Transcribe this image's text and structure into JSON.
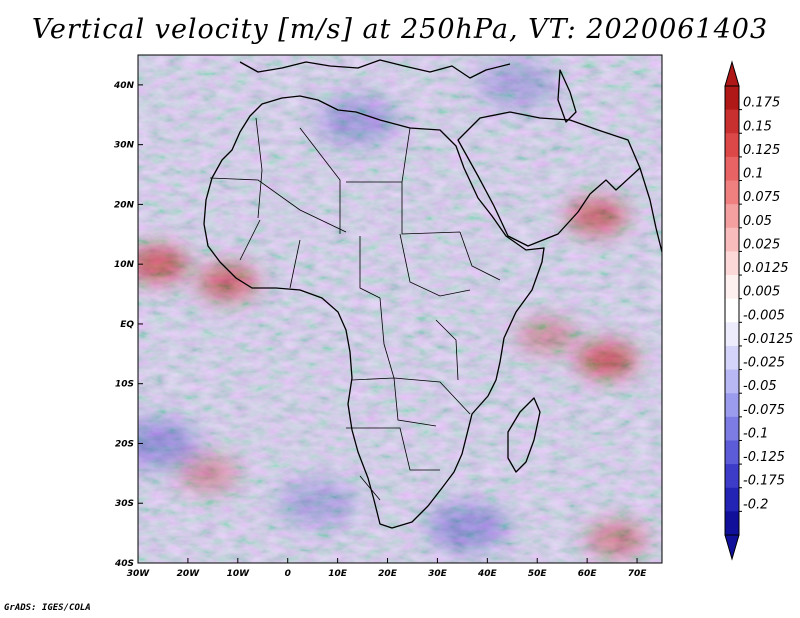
{
  "title": "Vertical velocity [m/s] at 250hPa, VT: 2020061403",
  "credit": "GrADS: IGES/COLA",
  "map": {
    "lat_range": [
      -40,
      45
    ],
    "lon_range": [
      -30,
      75
    ],
    "lat_labels": [
      "40N",
      "30N",
      "20N",
      "10N",
      "EQ",
      "10S",
      "20S",
      "30S",
      "40S"
    ],
    "lat_values": [
      40,
      30,
      20,
      10,
      0,
      -10,
      -20,
      -30,
      -40
    ],
    "lon_labels": [
      "30W",
      "20W",
      "10W",
      "0",
      "10E",
      "20E",
      "30E",
      "40E",
      "50E",
      "60E",
      "70E"
    ],
    "lon_values": [
      -30,
      -20,
      -10,
      0,
      10,
      20,
      30,
      40,
      50,
      60,
      70
    ]
  },
  "colorbar": {
    "labels": [
      "0.175",
      "0.15",
      "0.125",
      "0.1",
      "0.075",
      "0.05",
      "0.025",
      "0.0125",
      "0.005",
      "-0.005",
      "-0.0125",
      "-0.025",
      "-0.05",
      "-0.075",
      "-0.1",
      "-0.125",
      "-0.175",
      "-0.2"
    ],
    "colors": [
      "#b01818",
      "#c83030",
      "#dc4848",
      "#e86464",
      "#f08080",
      "#f4a0a0",
      "#f8bcbc",
      "#fcd8d8",
      "#fff0f0",
      "#ffffff",
      "#ececfc",
      "#d4d4fa",
      "#b8b8f4",
      "#9c9cee",
      "#7c7ce4",
      "#5c5cd8",
      "#3c3cc8",
      "#2424b4",
      "#10109a"
    ]
  },
  "field": {
    "background": "#d8d8f4",
    "red_patches": [
      {
        "lon": -26,
        "lat": 10,
        "strength": 0.9
      },
      {
        "lon": -12,
        "lat": 7,
        "strength": 0.8
      },
      {
        "lon": 64,
        "lat": -6,
        "strength": 0.9
      },
      {
        "lon": 62,
        "lat": 18,
        "strength": 0.8
      },
      {
        "lon": -16,
        "lat": -25,
        "strength": 0.5
      },
      {
        "lon": 52,
        "lat": -2,
        "strength": 0.5
      },
      {
        "lon": 66,
        "lat": -36,
        "strength": 0.6
      }
    ],
    "blue_patches": [
      {
        "lon": -26,
        "lat": -20,
        "strength": 0.6
      },
      {
        "lon": 36,
        "lat": -34,
        "strength": 0.6
      },
      {
        "lon": 14,
        "lat": 34,
        "strength": 0.5
      },
      {
        "lon": 46,
        "lat": 40,
        "strength": 0.4
      },
      {
        "lon": 6,
        "lat": -30,
        "strength": 0.4
      }
    ]
  }
}
